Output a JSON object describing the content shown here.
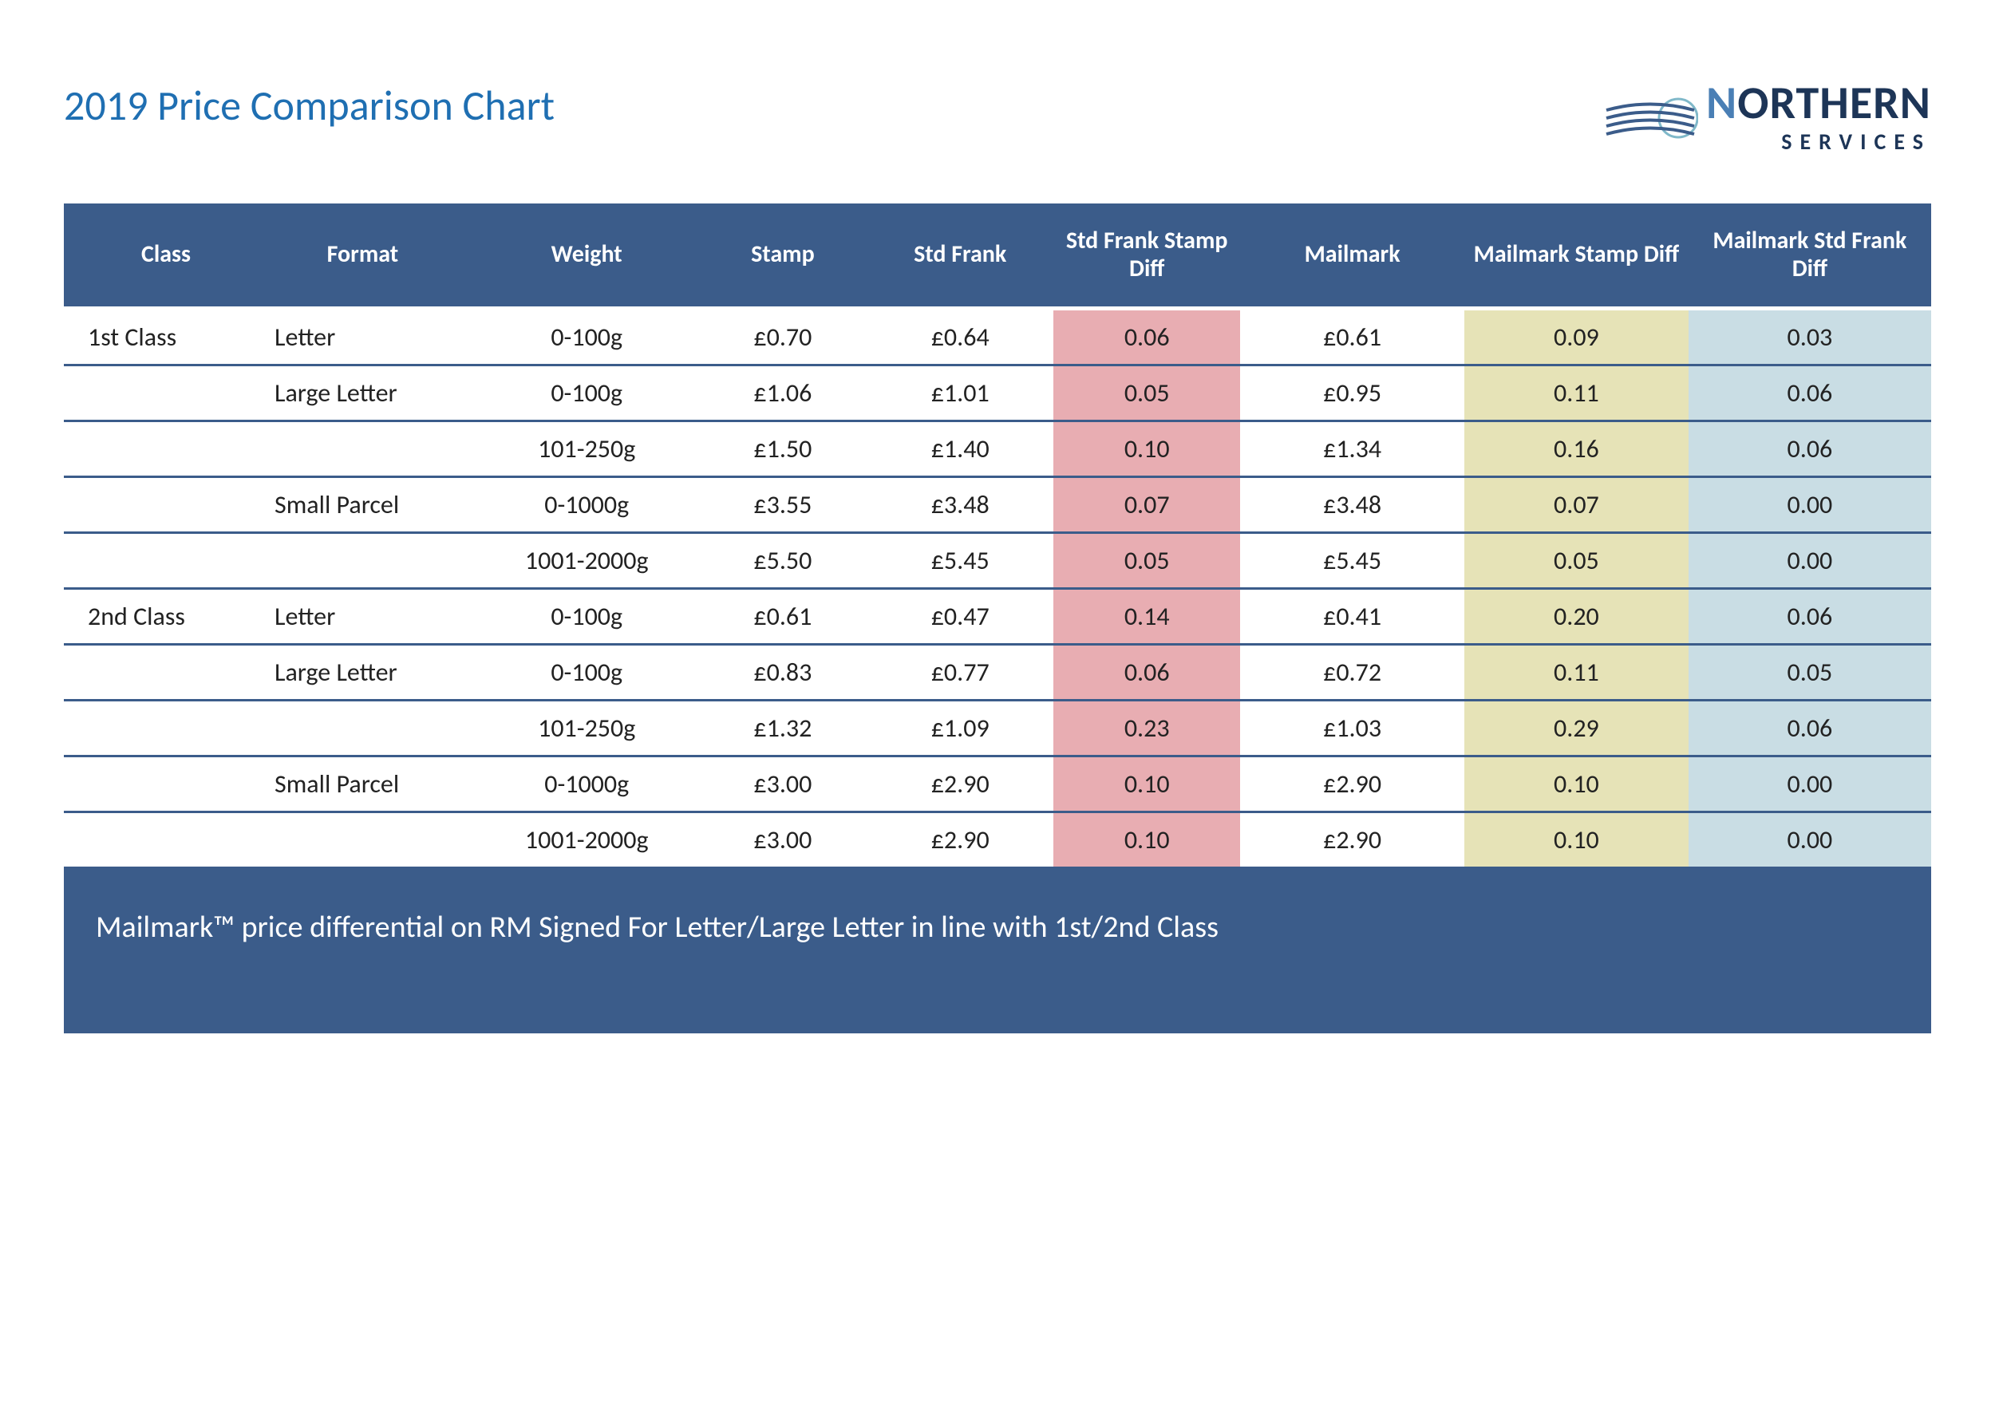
{
  "title": "2019 Price Comparison Chart",
  "logo": {
    "line1_pre": "N",
    "line1_rest": "ORTHERN",
    "line2": "SERVICES"
  },
  "columns": [
    "Class",
    "Format",
    "Weight",
    "Stamp",
    "Std Frank",
    "Std Frank Stamp Diff",
    "Mailmark",
    "Mailmark Stamp Diff",
    "Mailmark Std Frank Diff"
  ],
  "rows": [
    {
      "class": "1st Class",
      "format": "Letter",
      "weight": "0-100g",
      "stamp": "£0.70",
      "stdfrank": "£0.64",
      "d1": "0.06",
      "mailmark": "£0.61",
      "d2": "0.09",
      "d3": "0.03"
    },
    {
      "class": "",
      "format": "Large Letter",
      "weight": "0-100g",
      "stamp": "£1.06",
      "stdfrank": "£1.01",
      "d1": "0.05",
      "mailmark": "£0.95",
      "d2": "0.11",
      "d3": "0.06"
    },
    {
      "class": "",
      "format": "",
      "weight": "101-250g",
      "stamp": "£1.50",
      "stdfrank": "£1.40",
      "d1": "0.10",
      "mailmark": "£1.34",
      "d2": "0.16",
      "d3": "0.06"
    },
    {
      "class": "",
      "format": "Small Parcel",
      "weight": "0-1000g",
      "stamp": "£3.55",
      "stdfrank": "£3.48",
      "d1": "0.07",
      "mailmark": "£3.48",
      "d2": "0.07",
      "d3": "0.00"
    },
    {
      "class": "",
      "format": "",
      "weight": "1001-2000g",
      "stamp": "£5.50",
      "stdfrank": "£5.45",
      "d1": "0.05",
      "mailmark": "£5.45",
      "d2": "0.05",
      "d3": "0.00"
    },
    {
      "class": "2nd Class",
      "format": "Letter",
      "weight": "0-100g",
      "stamp": "£0.61",
      "stdfrank": "£0.47",
      "d1": "0.14",
      "mailmark": "£0.41",
      "d2": "0.20",
      "d3": "0.06"
    },
    {
      "class": "",
      "format": "Large Letter",
      "weight": "0-100g",
      "stamp": "£0.83",
      "stdfrank": "£0.77",
      "d1": "0.06",
      "mailmark": "£0.72",
      "d2": "0.11",
      "d3": "0.05"
    },
    {
      "class": "",
      "format": "",
      "weight": "101-250g",
      "stamp": "£1.32",
      "stdfrank": "£1.09",
      "d1": "0.23",
      "mailmark": "£1.03",
      "d2": "0.29",
      "d3": "0.06"
    },
    {
      "class": "",
      "format": "Small Parcel",
      "weight": "0-1000g",
      "stamp": "£3.00",
      "stdfrank": "£2.90",
      "d1": "0.10",
      "mailmark": "£2.90",
      "d2": "0.10",
      "d3": "0.00"
    },
    {
      "class": "",
      "format": "",
      "weight": "1001-2000g",
      "stamp": "£3.00",
      "stdfrank": "£2.90",
      "d1": "0.10",
      "mailmark": "£2.90",
      "d2": "0.10",
      "d3": "0.00"
    }
  ],
  "footer": "Mailmark™ price differential on RM Signed For Letter/Large Letter in line with 1st/2nd Class",
  "colors": {
    "header_bg": "#3b5c8a",
    "title": "#1f6fb2",
    "diff1_bg": "#e8adb2",
    "diff2_bg": "#e6e3b7",
    "diff3_bg": "#c9dde4",
    "row_border": "#3b5c8a"
  }
}
